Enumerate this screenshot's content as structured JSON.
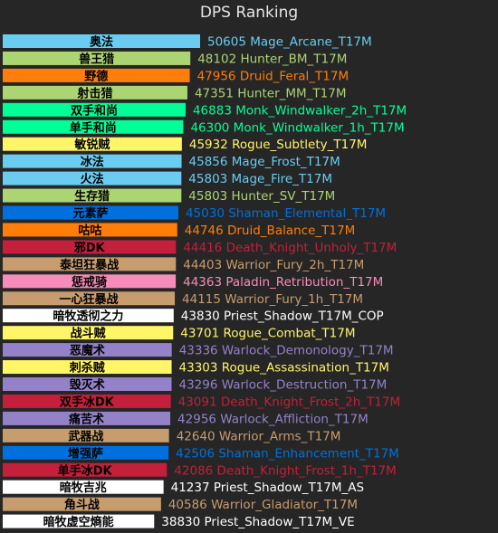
{
  "chart_data": {
    "type": "bar",
    "orientation": "horizontal",
    "title": "DPS Ranking",
    "xlim": [
      0,
      50605
    ],
    "grid": false,
    "rows": [
      {
        "label": "奥法",
        "value": 50605,
        "spec": "Mage_Arcane_T17M",
        "color": "#69ccf0",
        "text_color": "#69ccf0"
      },
      {
        "label": "兽王猎",
        "value": 48102,
        "spec": "Hunter_BM_T17M",
        "color": "#abd473",
        "text_color": "#abd473"
      },
      {
        "label": "野德",
        "value": 47956,
        "spec": "Druid_Feral_T17M",
        "color": "#ff7d0a",
        "text_color": "#ff7d0a"
      },
      {
        "label": "射击猎",
        "value": 47351,
        "spec": "Hunter_MM_T17M",
        "color": "#abd473",
        "text_color": "#abd473"
      },
      {
        "label": "双手和尚",
        "value": 46883,
        "spec": "Monk_Windwalker_2h_T17M",
        "color": "#00ff96",
        "text_color": "#00ff96"
      },
      {
        "label": "单手和尚",
        "value": 46300,
        "spec": "Monk_Windwalker_1h_T17M",
        "color": "#00ff96",
        "text_color": "#00ff96"
      },
      {
        "label": "敏锐贼",
        "value": 45932,
        "spec": "Rogue_Subtlety_T17M",
        "color": "#fff569",
        "text_color": "#fff569"
      },
      {
        "label": "冰法",
        "value": 45856,
        "spec": "Mage_Frost_T17M",
        "color": "#69ccf0",
        "text_color": "#69ccf0"
      },
      {
        "label": "火法",
        "value": 45803,
        "spec": "Mage_Fire_T17M",
        "color": "#69ccf0",
        "text_color": "#69ccf0"
      },
      {
        "label": "生存猎",
        "value": 45803,
        "spec": "Hunter_SV_T17M",
        "color": "#abd473",
        "text_color": "#abd473"
      },
      {
        "label": "元素萨",
        "value": 45030,
        "spec": "Shaman_Elemental_T17M",
        "color": "#0070de",
        "text_color": "#0070de"
      },
      {
        "label": "咕咕",
        "value": 44746,
        "spec": "Druid_Balance_T17M",
        "color": "#ff7d0a",
        "text_color": "#ff7d0a"
      },
      {
        "label": "邪DK",
        "value": 44416,
        "spec": "Death_Knight_Unholy_T17M",
        "color": "#c41f3b",
        "text_color": "#c41f3b"
      },
      {
        "label": "泰坦狂暴战",
        "value": 44403,
        "spec": "Warrior_Fury_2h_T17M",
        "color": "#c79c6e",
        "text_color": "#c79c6e"
      },
      {
        "label": "惩戒骑",
        "value": 44363,
        "spec": "Paladin_Retribution_T17M",
        "color": "#f58cba",
        "text_color": "#f58cba"
      },
      {
        "label": "一心狂暴战",
        "value": 44115,
        "spec": "Warrior_Fury_1h_T17M",
        "color": "#c79c6e",
        "text_color": "#c79c6e"
      },
      {
        "label": "暗牧透彻之力",
        "value": 43830,
        "spec": "Priest_Shadow_T17M_COP",
        "color": "#ffffff",
        "text_color": "#ffffff"
      },
      {
        "label": "战斗贼",
        "value": 43701,
        "spec": "Rogue_Combat_T17M",
        "color": "#fff569",
        "text_color": "#fff569"
      },
      {
        "label": "恶魔术",
        "value": 43336,
        "spec": "Warlock_Demonology_T17M",
        "color": "#9482c9",
        "text_color": "#9482c9"
      },
      {
        "label": "刺杀贼",
        "value": 43303,
        "spec": "Rogue_Assassination_T17M",
        "color": "#fff569",
        "text_color": "#fff569"
      },
      {
        "label": "毁灭术",
        "value": 43296,
        "spec": "Warlock_Destruction_T17M",
        "color": "#9482c9",
        "text_color": "#9482c9"
      },
      {
        "label": "双手冰DK",
        "value": 43091,
        "spec": "Death_Knight_Frost_2h_T17M",
        "color": "#c41f3b",
        "text_color": "#c41f3b"
      },
      {
        "label": "痛苦术",
        "value": 42956,
        "spec": "Warlock_Affliction_T17M",
        "color": "#9482c9",
        "text_color": "#9482c9"
      },
      {
        "label": "武器战",
        "value": 42640,
        "spec": "Warrior_Arms_T17M",
        "color": "#c79c6e",
        "text_color": "#c79c6e"
      },
      {
        "label": "增强萨",
        "value": 42506,
        "spec": "Shaman_Enhancement_T17M",
        "color": "#0070de",
        "text_color": "#0070de"
      },
      {
        "label": "单手冰DK",
        "value": 42086,
        "spec": "Death_Knight_Frost_1h_T17M",
        "color": "#c41f3b",
        "text_color": "#c41f3b"
      },
      {
        "label": "暗牧吉兆",
        "value": 41237,
        "spec": "Priest_Shadow_T17M_AS",
        "color": "#ffffff",
        "text_color": "#ffffff"
      },
      {
        "label": "角斗战",
        "value": 40586,
        "spec": "Warrior_Gladiator_T17M",
        "color": "#c79c6e",
        "text_color": "#c79c6e"
      },
      {
        "label": "暗牧虚空熵能",
        "value": 38830,
        "spec": "Priest_Shadow_T17M_VE",
        "color": "#ffffff",
        "text_color": "#ffffff"
      }
    ]
  }
}
